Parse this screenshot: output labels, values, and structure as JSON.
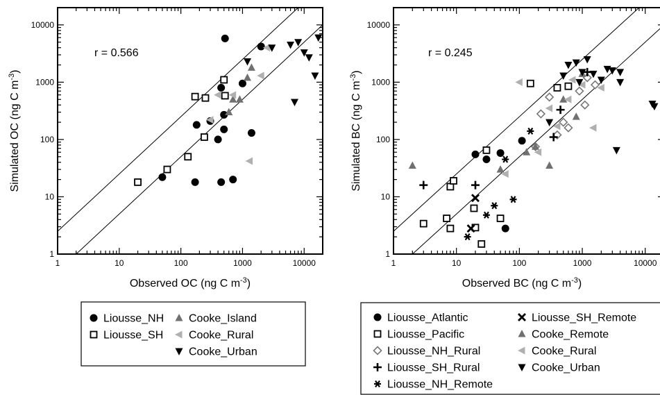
{
  "chart_data": [
    {
      "type": "scatter",
      "xlabel": "Observed OC (ng C m-3)",
      "ylabel": "Simulated OC (ng C m-3)",
      "x_scale": "log",
      "y_scale": "log",
      "xlim": [
        1,
        20000
      ],
      "ylim": [
        1,
        20000
      ],
      "x_ticks": [
        "1",
        "10",
        "100",
        "1000",
        "10000"
      ],
      "y_ticks": [
        "1",
        "10",
        "100",
        "1000",
        "10000"
      ],
      "annotation": "r = 0.566",
      "reference_lines": [
        {
          "slope": 1,
          "factor": 2.5
        },
        {
          "slope": 1,
          "factor": 0.5
        }
      ],
      "legend_position": "below",
      "series": [
        {
          "name": "Liousse_NH",
          "marker": "circle",
          "fill": "#000000",
          "points": [
            [
              50,
              22
            ],
            [
              170,
              18
            ],
            [
              180,
              180
            ],
            [
              300,
              210
            ],
            [
              400,
              100
            ],
            [
              450,
              18
            ],
            [
              450,
              800
            ],
            [
              500,
              150
            ],
            [
              500,
              270
            ],
            [
              520,
              5800
            ],
            [
              700,
              20
            ],
            [
              1000,
              950
            ],
            [
              1400,
              130
            ],
            [
              2000,
              4200
            ]
          ]
        },
        {
          "name": "Liousse_SH",
          "marker": "square-open",
          "fill": "#ffffff",
          "points": [
            [
              20,
              18
            ],
            [
              60,
              30
            ],
            [
              130,
              50
            ],
            [
              170,
              560
            ],
            [
              240,
              110
            ],
            [
              250,
              530
            ],
            [
              500,
              1100
            ],
            [
              520,
              580
            ]
          ]
        },
        {
          "name": "Cooke_Island",
          "marker": "triangle-up",
          "fill": "#707070",
          "points": [
            [
              600,
              300
            ],
            [
              700,
              500
            ],
            [
              900,
              500
            ],
            [
              1200,
              1200
            ],
            [
              1400,
              1800
            ]
          ]
        },
        {
          "name": "Cooke_Rural",
          "marker": "triangle-left",
          "fill": "#b0b0b0",
          "points": [
            [
              300,
              220
            ],
            [
              400,
              600
            ],
            [
              700,
              600
            ],
            [
              1300,
              42
            ],
            [
              2000,
              1300
            ],
            [
              2500,
              4000
            ]
          ]
        },
        {
          "name": "Cooke_Urban",
          "marker": "triangle-down",
          "fill": "#000000",
          "points": [
            [
              1200,
              2300
            ],
            [
              3000,
              4000
            ],
            [
              6000,
              4500
            ],
            [
              7000,
              450
            ],
            [
              8000,
              5000
            ],
            [
              10000,
              3300
            ],
            [
              12000,
              2700
            ],
            [
              15000,
              1300
            ],
            [
              17000,
              6000
            ]
          ]
        }
      ]
    },
    {
      "type": "scatter",
      "xlabel": "Observed BC (ng C m-3)",
      "ylabel": "Simulated BC (ng C m-3)",
      "x_scale": "log",
      "y_scale": "log",
      "xlim": [
        1,
        20000
      ],
      "ylim": [
        1,
        20000
      ],
      "x_ticks": [
        "1",
        "10",
        "100",
        "1000",
        "10000"
      ],
      "y_ticks": [
        "1",
        "10",
        "100",
        "1000",
        "10000"
      ],
      "annotation": "r = 0.245",
      "reference_lines": [
        {
          "slope": 1,
          "factor": 2.5
        },
        {
          "slope": 1,
          "factor": 0.5
        }
      ],
      "legend_position": "below",
      "series": [
        {
          "name": "Liousse_Atlantic",
          "marker": "circle",
          "fill": "#000000",
          "points": [
            [
              20,
              55
            ],
            [
              30,
              45
            ],
            [
              50,
              58
            ],
            [
              60,
              2.8
            ],
            [
              110,
              95
            ]
          ]
        },
        {
          "name": "Liousse_Pacific",
          "marker": "square-open",
          "fill": "#ffffff",
          "points": [
            [
              3,
              3.4
            ],
            [
              7,
              4.2
            ],
            [
              8,
              2.8
            ],
            [
              8,
              15
            ],
            [
              9,
              19
            ],
            [
              19,
              6.3
            ],
            [
              20,
              2.9
            ],
            [
              25,
              1.5
            ],
            [
              30,
              65
            ],
            [
              50,
              4.2
            ],
            [
              150,
              950
            ],
            [
              400,
              800
            ],
            [
              600,
              850
            ]
          ]
        },
        {
          "name": "Liousse_NH_Rural",
          "marker": "diamond-open",
          "fill": "#ffffff",
          "points": [
            [
              180,
              75
            ],
            [
              220,
              280
            ],
            [
              300,
              550
            ],
            [
              400,
              120
            ],
            [
              500,
              200
            ],
            [
              600,
              160
            ],
            [
              900,
              700
            ],
            [
              1100,
              400
            ],
            [
              1200,
              1200
            ],
            [
              1600,
              900
            ]
          ]
        },
        {
          "name": "Liousse_SH_Rural",
          "marker": "plus",
          "fill": "#000000",
          "points": [
            [
              3,
              16
            ],
            [
              20,
              16
            ],
            [
              350,
              110
            ],
            [
              450,
              330
            ],
            [
              1200,
              1500
            ]
          ]
        },
        {
          "name": "Liousse_NH_Remote",
          "marker": "asterisk",
          "fill": "#000000",
          "points": [
            [
              15,
              2
            ],
            [
              30,
              4.8
            ],
            [
              40,
              7
            ],
            [
              60,
              45
            ],
            [
              80,
              9
            ],
            [
              150,
              140
            ]
          ]
        },
        {
          "name": "Liousse_SH_Remote",
          "marker": "x",
          "fill": "#000000",
          "points": [
            [
              17,
              2.8
            ],
            [
              20,
              9.5
            ]
          ]
        },
        {
          "name": "Cooke_Remote",
          "marker": "triangle-up",
          "fill": "#707070",
          "points": [
            [
              2,
              35
            ],
            [
              50,
              30
            ],
            [
              130,
              60
            ],
            [
              180,
              75
            ],
            [
              300,
              35
            ],
            [
              500,
              500
            ],
            [
              800,
              250
            ],
            [
              1000,
              1400
            ]
          ]
        },
        {
          "name": "Cooke_Rural",
          "marker": "triangle-left",
          "fill": "#b0b0b0",
          "points": [
            [
              60,
              25
            ],
            [
              100,
              1000
            ],
            [
              200,
              60
            ],
            [
              300,
              350
            ],
            [
              400,
              170
            ],
            [
              600,
              500
            ],
            [
              700,
              1100
            ],
            [
              1000,
              900
            ],
            [
              1500,
              160
            ],
            [
              2000,
              800
            ]
          ]
        },
        {
          "name": "Cooke_Urban",
          "marker": "triangle-down",
          "fill": "#000000",
          "points": [
            [
              300,
              200
            ],
            [
              500,
              1300
            ],
            [
              600,
              2000
            ],
            [
              800,
              2200
            ],
            [
              900,
              1000
            ],
            [
              1000,
              1500
            ],
            [
              1200,
              2500
            ],
            [
              1500,
              1400
            ],
            [
              2000,
              1100
            ],
            [
              2500,
              1700
            ],
            [
              3000,
              1600
            ],
            [
              3500,
              65
            ],
            [
              4000,
              1500
            ],
            [
              4000,
              1000
            ],
            [
              13000,
              420
            ],
            [
              14000,
              380
            ]
          ]
        }
      ]
    }
  ],
  "legends": [
    [
      [
        "Liousse_NH",
        "Liousse_SH",
        ""
      ],
      [
        "Cooke_Island",
        "Cooke_Rural",
        "Cooke_Urban"
      ]
    ],
    [
      [
        "Liousse_Atlantic",
        "Liousse_Pacific",
        "Liousse_NH_Rural",
        "Liousse_SH_Rural",
        "Liousse_NH_Remote"
      ],
      [
        "Liousse_SH_Remote",
        "Cooke_Remote",
        "Cooke_Rural",
        "Cooke_Urban"
      ]
    ]
  ]
}
